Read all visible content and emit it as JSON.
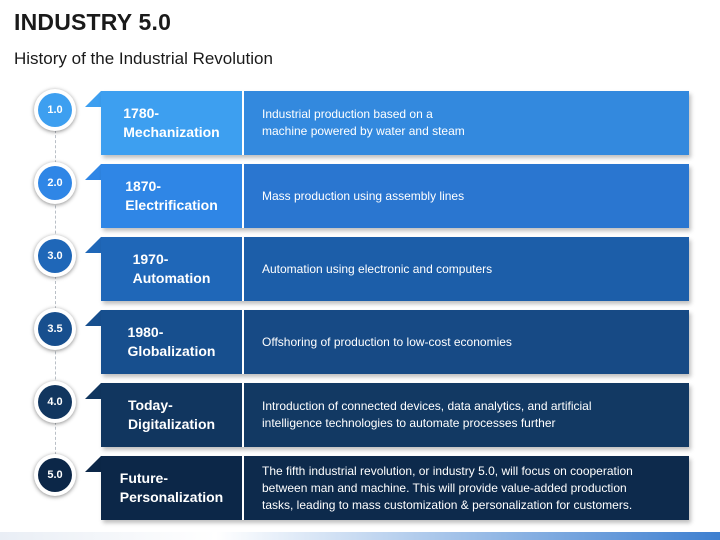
{
  "header": {
    "title": "INDUSTRY 5.0",
    "subtitle": "History of the Industrial Revolution"
  },
  "timeline": [
    {
      "node": "1.0",
      "era": "1780-\nMechanization",
      "description": "Industrial production based on a\nmachine powered by water and steam",
      "color_left": "#3d9ff0",
      "color_right": "#3389de",
      "node_color": "#3d9ff0"
    },
    {
      "node": "2.0",
      "era": "1870-\nElectrification",
      "description": "Mass production using assembly lines",
      "color_left": "#2f86e6",
      "color_right": "#2a76d0",
      "node_color": "#2f86e6"
    },
    {
      "node": "3.0",
      "era": "1970-\nAutomation",
      "description": "Automation using electronic and computers",
      "color_left": "#1f67b8",
      "color_right": "#1c5ea9",
      "node_color": "#1f67b8"
    },
    {
      "node": "3.5",
      "era": "1980-\nGlobalization",
      "description": "Offshoring of production to low-cost economies",
      "color_left": "#174f8e",
      "color_right": "#174a85",
      "node_color": "#174f8e"
    },
    {
      "node": "4.0",
      "era": "Today-\nDigitalization",
      "description": "Introduction of connected devices, data analytics, and artificial\nintelligence technologies to automate processes further",
      "color_left": "#11365f",
      "color_right": "#123963",
      "node_color": "#11365f"
    },
    {
      "node": "5.0",
      "era": "Future-\nPersonalization",
      "description": "The fifth industrial revolution, or industry 5.0, will focus on cooperation\nbetween man and machine. This will provide value-added production\ntasks, leading to mass customization & personalization for customers.",
      "color_left": "#0c2748",
      "color_right": "#0d2a4c",
      "node_color": "#0c2748"
    }
  ]
}
